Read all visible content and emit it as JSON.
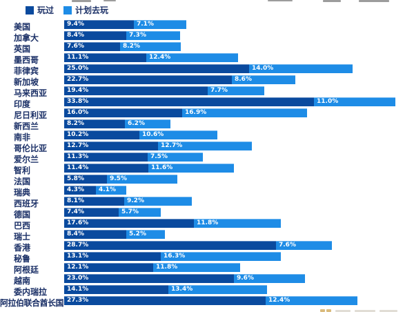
{
  "legend": {
    "played_label": "玩过",
    "planned_label": "计划去玩"
  },
  "colors": {
    "played": "#0a4a9e",
    "planned": "#1e8ce6",
    "category_text": "#1a2f66",
    "value_text": "#ffffff",
    "background": "#ffffff"
  },
  "chart_data": {
    "type": "bar",
    "orientation": "horizontal",
    "stacked": true,
    "grid": false,
    "legend_position": "top-left",
    "xlim": [
      0,
      47
    ],
    "value_label_format": "{value}%",
    "categories": [
      "美国",
      "加拿大",
      "英国",
      "墨西哥",
      "菲律宾",
      "新加坡",
      "马来西亚",
      "印度",
      "尼日利亚",
      "新西兰",
      "南非",
      "哥伦比亚",
      "爱尔兰",
      "智利",
      "法国",
      "瑞典",
      "西班牙",
      "德国",
      "巴西",
      "瑞士",
      "香港",
      "秘鲁",
      "阿根廷",
      "越南",
      "委内瑞拉",
      "阿拉伯联合酋长国"
    ],
    "series": [
      {
        "name": "玩过",
        "color": "#0a4a9e",
        "values": [
          9.4,
          8.4,
          7.6,
          11.1,
          25.0,
          22.7,
          19.4,
          33.8,
          16.0,
          8.2,
          10.2,
          12.7,
          11.3,
          11.4,
          5.8,
          4.3,
          8.1,
          7.4,
          17.6,
          8.4,
          28.7,
          13.1,
          12.1,
          23.0,
          14.1,
          27.3
        ]
      },
      {
        "name": "计划去玩",
        "color": "#1e8ce6",
        "values": [
          7.1,
          7.3,
          8.2,
          12.4,
          14.0,
          8.6,
          7.7,
          11.0,
          16.9,
          6.2,
          10.6,
          12.7,
          7.5,
          11.6,
          9.5,
          4.1,
          9.2,
          5.7,
          11.8,
          5.2,
          7.6,
          16.3,
          11.8,
          9.6,
          13.4,
          12.4
        ]
      }
    ]
  }
}
